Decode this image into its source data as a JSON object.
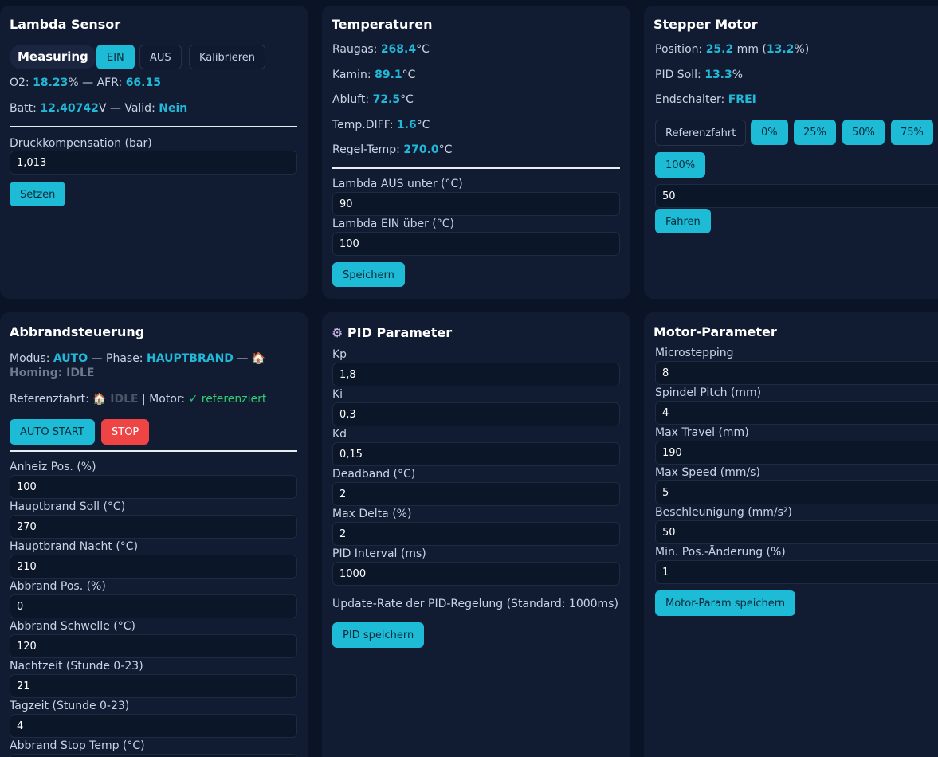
{
  "lambda": {
    "title": "Lambda Sensor",
    "status": "Measuring",
    "btn_ein": "EIN",
    "btn_aus": "AUS",
    "btn_kalib": "Kalibrieren",
    "o2_label": "O2: ",
    "o2_value": "18.23",
    "o2_unit": "% — AFR: ",
    "afr_value": "66.15",
    "batt_label": "Batt: ",
    "batt_value": "12.40742",
    "batt_unit": "V — Valid: ",
    "valid_value": "Nein",
    "druck_label": "Druckkompensation (bar)",
    "druck_value": "1,013",
    "btn_setzen": "Setzen"
  },
  "temps": {
    "title": "Temperaturen",
    "rows": [
      {
        "label": "Raugas: ",
        "value": "268.4",
        "unit": "°C"
      },
      {
        "label": "Kamin: ",
        "value": "89.1",
        "unit": "°C"
      },
      {
        "label": "Abluft: ",
        "value": "72.5",
        "unit": "°C"
      },
      {
        "label": "Temp.DIFF: ",
        "value": "1.6",
        "unit": "°C"
      },
      {
        "label": "Regel-Temp: ",
        "value": "270.0",
        "unit": "°C"
      }
    ],
    "aus_label": "Lambda AUS unter (°C)",
    "aus_value": "90",
    "ein_label": "Lambda EIN über (°C)",
    "ein_value": "100",
    "btn_save": "Speichern"
  },
  "stepper": {
    "title": "Stepper Motor",
    "pos_label": "Position: ",
    "pos_value": "25.2",
    "pos_mid": " mm (",
    "pos_pct": "13.2",
    "pos_end": "%)",
    "pid_label": "PID Soll: ",
    "pid_value": "13.3",
    "pid_unit": "%",
    "end_label": "Endschalter: ",
    "end_value": "FREI",
    "btn_ref": "Referenzfahrt",
    "btn_0": "0%",
    "btn_25": "25%",
    "btn_50": "50%",
    "btn_75": "75%",
    "btn_100": "100%",
    "target_value": "50",
    "btn_fahren": "Fahren"
  },
  "abbrand": {
    "title": "Abbrandsteuerung",
    "modus_label": "Modus: ",
    "modus_value": "AUTO",
    "phase_label": " — Phase: ",
    "phase_value": "HAUPTBRAND",
    "homing_sep": " — ",
    "homing_text": "Homing: IDLE",
    "ref_label": "Referenzfahrt: ",
    "ref_value": "IDLE",
    "motor_label": " | Motor: ",
    "motor_value": "✓ referenziert",
    "btn_start": "AUTO START",
    "btn_stop": "STOP",
    "fields": [
      {
        "label": "Anheiz Pos. (%)",
        "value": "100"
      },
      {
        "label": "Hauptbrand Soll (°C)",
        "value": "270"
      },
      {
        "label": "Hauptbrand Nacht (°C)",
        "value": "210"
      },
      {
        "label": "Abbrand Pos. (%)",
        "value": "0"
      },
      {
        "label": "Abbrand Schwelle (°C)",
        "value": "120"
      },
      {
        "label": "Nachtzeit (Stunde 0-23)",
        "value": "21"
      },
      {
        "label": "Tagzeit (Stunde 0-23)",
        "value": "4"
      },
      {
        "label": "Abbrand Stop Temp (°C)",
        "value": ""
      }
    ]
  },
  "pid": {
    "title": "PID Parameter",
    "fields": [
      {
        "label": "Kp",
        "value": "1,8"
      },
      {
        "label": "Ki",
        "value": "0,3"
      },
      {
        "label": "Kd",
        "value": "0,15"
      },
      {
        "label": "Deadband (°C)",
        "value": "2"
      },
      {
        "label": "Max Delta (%)",
        "value": "2"
      },
      {
        "label": "PID Interval (ms)",
        "value": "1000"
      }
    ],
    "hint": "Update-Rate der PID-Regelung (Standard: 1000ms)",
    "btn_save": "PID speichern"
  },
  "motor": {
    "title": "Motor-Parameter",
    "fields": [
      {
        "label": "Microstepping",
        "value": "8"
      },
      {
        "label": "Spindel Pitch (mm)",
        "value": "4"
      },
      {
        "label": "Max Travel (mm)",
        "value": "190"
      },
      {
        "label": "Max Speed (mm/s)",
        "value": "5"
      },
      {
        "label": "Beschleunigung (mm/s²)",
        "value": "50"
      },
      {
        "label": "Min. Pos.-Änderung (%)",
        "value": "1"
      }
    ],
    "btn_save": "Motor-Param speichern"
  }
}
